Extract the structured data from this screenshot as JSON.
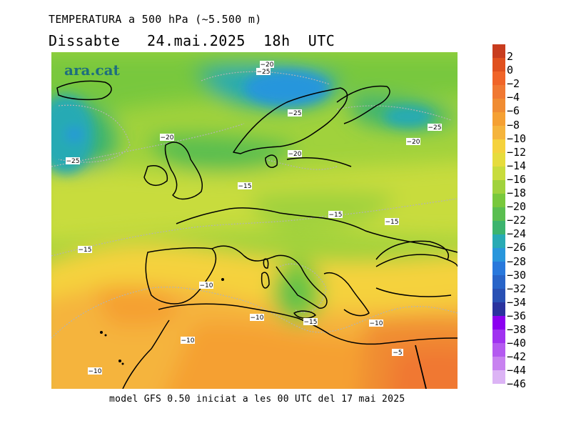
{
  "header": {
    "title": "TEMPERATURA a 500 hPa (~5.500 m)",
    "subtitle": "Dissabte   24.mai.2025  18h  UTC"
  },
  "footer": {
    "text": "model GFS 0.50 iniciat a les 00 UTC del 17 mai 2025"
  },
  "logo": {
    "text": "ara.cat"
  },
  "legend": {
    "labels": [
      "2",
      "0",
      "−2",
      "−4",
      "−6",
      "−8",
      "−10",
      "−12",
      "−14",
      "−16",
      "−18",
      "−20",
      "−22",
      "−24",
      "−26",
      "−28",
      "−30",
      "−32",
      "−34",
      "−36",
      "−38",
      "−40",
      "−42",
      "−44",
      "−46"
    ],
    "colors": [
      "#c83c1e",
      "#e0501e",
      "#f06428",
      "#f07832",
      "#f08c32",
      "#f5a032",
      "#f5b43c",
      "#f5d23c",
      "#e6dc3c",
      "#c8dc3c",
      "#a0d23c",
      "#78c83c",
      "#5abe50",
      "#3cb46e",
      "#28aab4",
      "#2896dc",
      "#2878dc",
      "#2864c8",
      "#2850b4",
      "#2a329e",
      "#8c00f0",
      "#a032f0",
      "#b45af0",
      "#c882f0",
      "#dcb4f5"
    ]
  },
  "contour_labels": [
    {
      "text": "−20"
    },
    {
      "text": "−25"
    },
    {
      "text": "−25"
    },
    {
      "text": "−25"
    },
    {
      "text": "−20"
    },
    {
      "text": "−20"
    },
    {
      "text": "−25"
    },
    {
      "text": "−20"
    },
    {
      "text": "−15"
    },
    {
      "text": "−15"
    },
    {
      "text": "−15"
    },
    {
      "text": "−15"
    },
    {
      "text": "−10"
    },
    {
      "text": "−10"
    },
    {
      "text": "−15"
    },
    {
      "text": "−10"
    },
    {
      "text": "−10"
    },
    {
      "text": "−5"
    },
    {
      "text": "−10"
    }
  ]
}
